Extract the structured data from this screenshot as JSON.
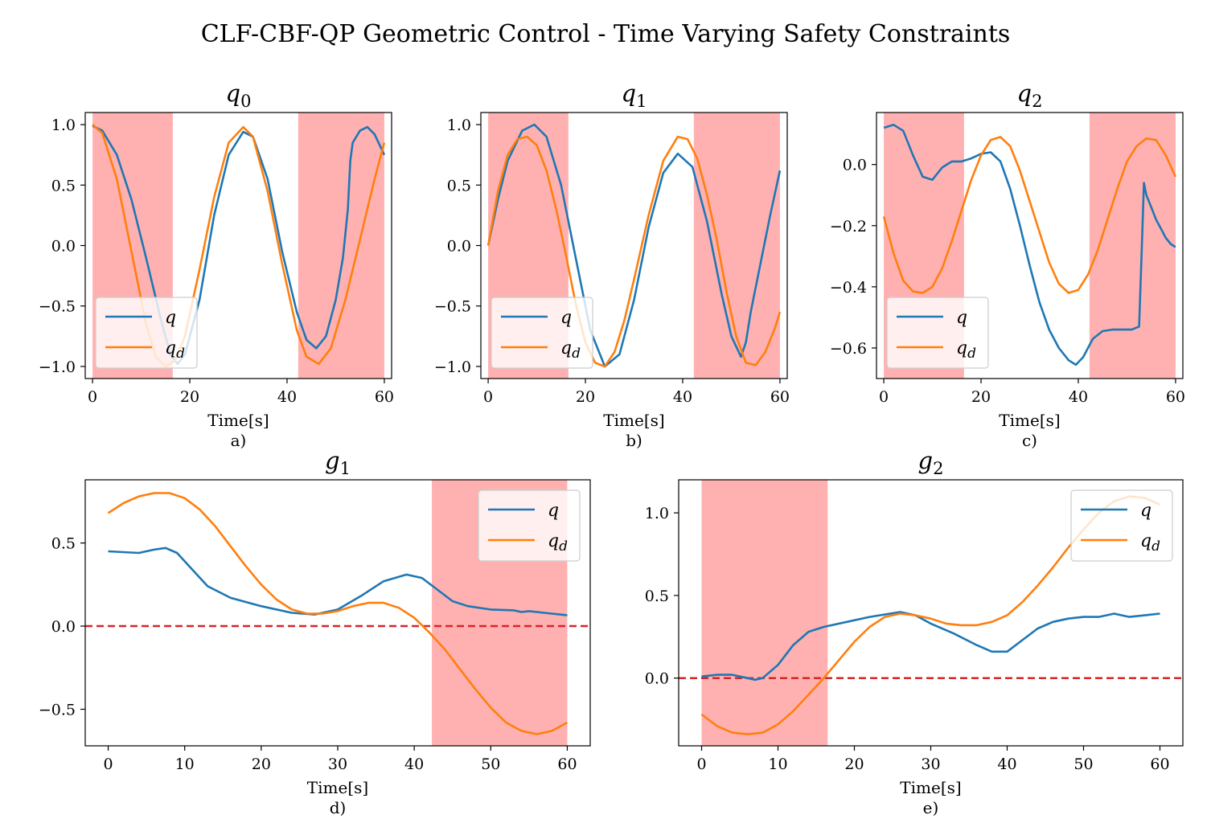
{
  "figure": {
    "suptitle": "CLF-CBF-QP Geometric Control - Time Varying Safety Constraints"
  },
  "chart_data": [
    {
      "id": "q0",
      "type": "line",
      "title": "q",
      "title_sub": "0",
      "xlabel": "Time[s]",
      "caption": "a)",
      "xlim": [
        -1.5,
        61.5
      ],
      "ylim": [
        -1.1,
        1.1
      ],
      "xticks": [
        0,
        20,
        40,
        60
      ],
      "xtick_labels": [
        "0",
        "20",
        "40",
        "60"
      ],
      "yticks": [
        1.0,
        0.5,
        0.0,
        -0.5,
        -1.0
      ],
      "ytick_labels": [
        "1.0",
        "0.5",
        "0.0",
        "−0.5",
        "−1.0"
      ],
      "shaded": [
        [
          0,
          16.5
        ],
        [
          42.3,
          60
        ]
      ],
      "legend": {
        "position": "lower-left",
        "entries": [
          "q",
          "q_d"
        ]
      },
      "series": [
        {
          "name": "q",
          "color": "#1f77b4",
          "x": [
            0,
            2,
            5,
            8,
            11,
            14,
            16,
            17.5,
            19,
            22,
            25,
            28,
            31,
            33,
            36,
            39,
            42,
            44,
            46,
            48,
            50,
            51.5,
            52.5,
            53,
            53.5,
            55,
            56.5,
            58,
            60
          ],
          "y": [
            0.99,
            0.95,
            0.75,
            0.38,
            -0.1,
            -0.6,
            -0.9,
            -0.98,
            -0.9,
            -0.45,
            0.25,
            0.75,
            0.94,
            0.9,
            0.55,
            -0.05,
            -0.55,
            -0.78,
            -0.85,
            -0.75,
            -0.45,
            -0.1,
            0.3,
            0.7,
            0.85,
            0.95,
            0.98,
            0.92,
            0.75
          ]
        },
        {
          "name": "q_d",
          "color": "#ff7f0e",
          "x": [
            0,
            2,
            5,
            8,
            11,
            13,
            15,
            17,
            19,
            22,
            25,
            28,
            31,
            33,
            36,
            39,
            42,
            44,
            46.5,
            49,
            52,
            55,
            58,
            60
          ],
          "y": [
            1.0,
            0.93,
            0.55,
            -0.05,
            -0.65,
            -0.92,
            -1.0,
            -0.95,
            -0.75,
            -0.2,
            0.4,
            0.85,
            0.98,
            0.9,
            0.45,
            -0.15,
            -0.7,
            -0.92,
            -0.98,
            -0.85,
            -0.45,
            0.05,
            0.55,
            0.85
          ]
        }
      ]
    },
    {
      "id": "q1",
      "type": "line",
      "title": "q",
      "title_sub": "1",
      "xlabel": "Time[s]",
      "caption": "b)",
      "xlim": [
        -1.5,
        61.5
      ],
      "ylim": [
        -1.1,
        1.1
      ],
      "xticks": [
        0,
        20,
        40,
        60
      ],
      "xtick_labels": [
        "0",
        "20",
        "40",
        "60"
      ],
      "yticks": [
        1.0,
        0.5,
        0.0,
        -0.5,
        -1.0
      ],
      "ytick_labels": [
        "1.0",
        "0.5",
        "0.0",
        "−0.5",
        "−1.0"
      ],
      "shaded": [
        [
          0,
          16.5
        ],
        [
          42.3,
          60
        ]
      ],
      "legend": {
        "position": "lower-left",
        "entries": [
          "q",
          "q_d"
        ]
      },
      "series": [
        {
          "name": "q",
          "color": "#1f77b4",
          "x": [
            0,
            2,
            4,
            7,
            9.5,
            12,
            15,
            18,
            21,
            24,
            27,
            30,
            33,
            36,
            39,
            42,
            45,
            48,
            50,
            52,
            53,
            54,
            56,
            58,
            60
          ],
          "y": [
            0.0,
            0.38,
            0.7,
            0.95,
            1.0,
            0.9,
            0.5,
            -0.1,
            -0.7,
            -1.0,
            -0.9,
            -0.45,
            0.15,
            0.6,
            0.76,
            0.65,
            0.2,
            -0.4,
            -0.75,
            -0.92,
            -0.8,
            -0.55,
            -0.15,
            0.25,
            0.62
          ]
        },
        {
          "name": "q_d",
          "color": "#ff7f0e",
          "x": [
            0,
            2,
            4,
            6,
            8,
            10,
            12,
            14,
            16,
            18,
            20,
            22,
            24,
            26,
            28,
            30,
            33,
            36,
            39,
            41,
            43,
            45,
            47,
            49,
            51,
            53,
            55,
            57,
            59,
            60
          ],
          "y": [
            0.0,
            0.45,
            0.75,
            0.88,
            0.9,
            0.83,
            0.62,
            0.3,
            -0.08,
            -0.48,
            -0.8,
            -0.97,
            -1.0,
            -0.88,
            -0.62,
            -0.28,
            0.25,
            0.7,
            0.9,
            0.88,
            0.72,
            0.42,
            0.05,
            -0.38,
            -0.75,
            -0.97,
            -0.99,
            -0.88,
            -0.68,
            -0.55
          ]
        }
      ]
    },
    {
      "id": "q2",
      "type": "line",
      "title": "q",
      "title_sub": "2",
      "xlabel": "Time[s]",
      "caption": "c)",
      "xlim": [
        -1.5,
        61.5
      ],
      "ylim": [
        -0.7,
        0.17
      ],
      "xticks": [
        0,
        20,
        40,
        60
      ],
      "xtick_labels": [
        "0",
        "20",
        "40",
        "60"
      ],
      "yticks": [
        0.0,
        -0.2,
        -0.4,
        -0.6
      ],
      "ytick_labels": [
        "0.0",
        "−0.2",
        "−0.4",
        "−0.6"
      ],
      "shaded": [
        [
          0,
          16.5
        ],
        [
          42.3,
          60
        ]
      ],
      "legend": {
        "position": "lower-left",
        "entries": [
          "q",
          "q_d"
        ]
      },
      "series": [
        {
          "name": "q",
          "color": "#1f77b4",
          "x": [
            0,
            2,
            4,
            6,
            8,
            10,
            12,
            14,
            16,
            18,
            20,
            22,
            24,
            26,
            28,
            30,
            32,
            34,
            36,
            38,
            39.5,
            41,
            43,
            45,
            47,
            49,
            51,
            52.5,
            53,
            53.5,
            54,
            55,
            56,
            57,
            58,
            59,
            60
          ],
          "y": [
            0.12,
            0.13,
            0.11,
            0.03,
            -0.04,
            -0.05,
            -0.01,
            0.01,
            0.01,
            0.02,
            0.035,
            0.04,
            0.01,
            -0.08,
            -0.2,
            -0.33,
            -0.45,
            -0.54,
            -0.6,
            -0.64,
            -0.655,
            -0.63,
            -0.57,
            -0.545,
            -0.54,
            -0.54,
            -0.54,
            -0.53,
            -0.3,
            -0.06,
            -0.1,
            -0.14,
            -0.18,
            -0.21,
            -0.24,
            -0.26,
            -0.27
          ]
        },
        {
          "name": "q_d",
          "color": "#ff7f0e",
          "x": [
            0,
            2,
            4,
            6,
            8,
            10,
            12,
            14,
            16,
            18,
            20,
            22,
            24,
            26,
            28,
            30,
            32,
            34,
            36,
            38,
            40,
            42,
            44,
            46,
            48,
            50,
            52,
            54,
            56,
            58,
            60
          ],
          "y": [
            -0.17,
            -0.29,
            -0.38,
            -0.415,
            -0.42,
            -0.4,
            -0.34,
            -0.25,
            -0.15,
            -0.05,
            0.03,
            0.08,
            0.09,
            0.06,
            -0.02,
            -0.12,
            -0.22,
            -0.32,
            -0.39,
            -0.42,
            -0.41,
            -0.36,
            -0.28,
            -0.18,
            -0.08,
            0.01,
            0.06,
            0.085,
            0.08,
            0.03,
            -0.04
          ]
        }
      ]
    },
    {
      "id": "g1",
      "type": "line",
      "title": "g",
      "title_sub": "1",
      "xlabel": "Time[s]",
      "caption": "d)",
      "xlim": [
        -3,
        63
      ],
      "ylim": [
        -0.72,
        0.88
      ],
      "xticks": [
        0,
        10,
        20,
        30,
        40,
        50,
        60
      ],
      "xtick_labels": [
        "0",
        "10",
        "20",
        "30",
        "40",
        "50",
        "60"
      ],
      "yticks": [
        0.5,
        0.0,
        -0.5
      ],
      "ytick_labels": [
        "0.5",
        "0.0",
        "−0.5"
      ],
      "shaded": [
        [
          42.3,
          60
        ]
      ],
      "hline": {
        "y": 0.0,
        "color": "#d62728",
        "style": "dashed"
      },
      "legend": {
        "position": "top-right",
        "entries": [
          "q",
          "q_d"
        ]
      },
      "series": [
        {
          "name": "q",
          "color": "#1f77b4",
          "x": [
            0,
            2,
            4,
            6,
            7.5,
            9,
            11,
            13,
            16,
            20,
            24,
            27,
            30,
            33,
            36,
            39,
            41,
            43,
            45,
            47,
            50,
            53,
            54,
            55,
            57,
            60
          ],
          "y": [
            0.45,
            0.445,
            0.44,
            0.46,
            0.47,
            0.44,
            0.34,
            0.24,
            0.17,
            0.12,
            0.08,
            0.07,
            0.1,
            0.18,
            0.27,
            0.31,
            0.29,
            0.22,
            0.15,
            0.12,
            0.1,
            0.095,
            0.085,
            0.09,
            0.08,
            0.065
          ]
        },
        {
          "name": "q_d",
          "color": "#ff7f0e",
          "x": [
            0,
            2,
            4,
            6,
            8,
            10,
            12,
            14,
            16,
            18,
            20,
            22,
            24,
            26,
            28,
            30,
            32,
            34,
            36,
            38,
            40,
            42,
            44,
            46,
            48,
            50,
            52,
            54,
            56,
            58,
            60
          ],
          "y": [
            0.68,
            0.74,
            0.78,
            0.8,
            0.8,
            0.77,
            0.7,
            0.6,
            0.48,
            0.36,
            0.25,
            0.16,
            0.1,
            0.075,
            0.075,
            0.09,
            0.12,
            0.14,
            0.14,
            0.11,
            0.05,
            -0.04,
            -0.14,
            -0.26,
            -0.38,
            -0.49,
            -0.58,
            -0.63,
            -0.65,
            -0.63,
            -0.58
          ]
        }
      ]
    },
    {
      "id": "g2",
      "type": "line",
      "title": "g",
      "title_sub": "2",
      "xlabel": "Time[s]",
      "caption": "e)",
      "xlim": [
        -3,
        63
      ],
      "ylim": [
        -0.41,
        1.2
      ],
      "xticks": [
        0,
        10,
        20,
        30,
        40,
        50,
        60
      ],
      "xtick_labels": [
        "0",
        "10",
        "20",
        "30",
        "40",
        "50",
        "60"
      ],
      "yticks": [
        1.0,
        0.5,
        0.0
      ],
      "ytick_labels": [
        "1.0",
        "0.5",
        "0.0"
      ],
      "shaded": [
        [
          0,
          16.5
        ]
      ],
      "hline": {
        "y": 0.0,
        "color": "#d62728",
        "style": "dashed"
      },
      "legend": {
        "position": "top-right",
        "entries": [
          "q",
          "q_d"
        ]
      },
      "series": [
        {
          "name": "q",
          "color": "#1f77b4",
          "x": [
            0,
            2,
            4,
            6,
            7,
            8,
            10,
            12,
            14,
            16,
            19,
            22,
            26,
            28,
            30,
            33,
            36,
            38,
            40,
            42,
            44,
            46,
            48,
            50,
            52,
            53,
            54,
            55,
            56,
            58,
            60
          ],
          "y": [
            0.01,
            0.02,
            0.02,
            0.0,
            -0.01,
            0.0,
            0.08,
            0.2,
            0.28,
            0.31,
            0.34,
            0.37,
            0.4,
            0.38,
            0.33,
            0.27,
            0.2,
            0.16,
            0.16,
            0.23,
            0.3,
            0.34,
            0.36,
            0.37,
            0.37,
            0.38,
            0.39,
            0.38,
            0.37,
            0.38,
            0.39
          ]
        },
        {
          "name": "q_d",
          "color": "#ff7f0e",
          "x": [
            0,
            2,
            4,
            6,
            8,
            10,
            12,
            14,
            16,
            18,
            20,
            22,
            24,
            26,
            28,
            30,
            32,
            34,
            36,
            38,
            40,
            42,
            44,
            46,
            48,
            50,
            52,
            54,
            56,
            58,
            60
          ],
          "y": [
            -0.22,
            -0.29,
            -0.33,
            -0.34,
            -0.33,
            -0.28,
            -0.2,
            -0.1,
            0.0,
            0.11,
            0.22,
            0.31,
            0.37,
            0.39,
            0.38,
            0.36,
            0.33,
            0.32,
            0.32,
            0.34,
            0.38,
            0.46,
            0.56,
            0.67,
            0.79,
            0.9,
            1.0,
            1.07,
            1.1,
            1.09,
            1.05
          ]
        }
      ]
    }
  ]
}
